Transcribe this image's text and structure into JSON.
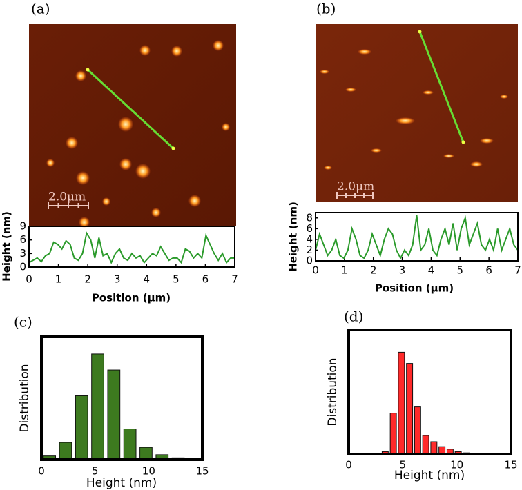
{
  "images": [
    {
      "scale_bar": "2.0μm"
    },
    {
      "scale_bar": "2.0μm"
    }
  ],
  "chart_data": [
    {
      "type": "line",
      "label": "(a)",
      "xlabel": "Position (μm)",
      "ylabel": "Height (nm)",
      "color": "#2a9a2a",
      "xlim": [
        0,
        7
      ],
      "ylim": [
        0,
        9
      ],
      "xticks": [
        0,
        1,
        2,
        3,
        4,
        5,
        6,
        7
      ],
      "yticks": [
        0,
        3,
        6,
        9
      ],
      "x": [
        0,
        0.14,
        0.28,
        0.42,
        0.56,
        0.7,
        0.84,
        0.98,
        1.12,
        1.26,
        1.4,
        1.54,
        1.68,
        1.82,
        1.96,
        2.1,
        2.24,
        2.38,
        2.52,
        2.66,
        2.8,
        2.94,
        3.08,
        3.22,
        3.36,
        3.5,
        3.64,
        3.78,
        3.92,
        4.06,
        4.2,
        4.34,
        4.48,
        4.62,
        4.76,
        4.9,
        5.04,
        5.18,
        5.32,
        5.46,
        5.6,
        5.74,
        5.88,
        6.02,
        6.16,
        6.3,
        6.44,
        6.58,
        6.72,
        6.86,
        7
      ],
      "values": [
        1,
        1.5,
        2,
        1.2,
        2.5,
        3,
        5.5,
        5,
        4,
        5.8,
        5,
        2,
        1.5,
        3,
        7.5,
        6,
        2,
        6.5,
        2.5,
        3,
        1,
        3,
        4,
        2,
        1.5,
        3,
        2,
        2.5,
        1,
        2,
        3,
        2.5,
        4.5,
        3,
        1.5,
        2,
        2,
        1,
        4,
        3.5,
        2,
        3,
        2,
        7,
        5,
        3,
        1.5,
        3,
        1,
        2,
        2
      ]
    },
    {
      "type": "line",
      "label": "(b)",
      "xlabel": "Position (μm)",
      "ylabel": "Height (nm)",
      "color": "#2a9a2a",
      "xlim": [
        0,
        7
      ],
      "ylim": [
        0,
        9
      ],
      "xticks": [
        0,
        1,
        2,
        3,
        4,
        5,
        6,
        7
      ],
      "yticks": [
        0,
        2,
        4,
        6,
        8
      ],
      "x": [
        0,
        0.14,
        0.28,
        0.42,
        0.56,
        0.7,
        0.84,
        0.98,
        1.12,
        1.26,
        1.4,
        1.54,
        1.68,
        1.82,
        1.96,
        2.1,
        2.24,
        2.38,
        2.52,
        2.66,
        2.8,
        2.94,
        3.08,
        3.22,
        3.36,
        3.5,
        3.64,
        3.78,
        3.92,
        4.06,
        4.2,
        4.34,
        4.48,
        4.62,
        4.76,
        4.9,
        5.04,
        5.18,
        5.32,
        5.46,
        5.6,
        5.74,
        5.88,
        6.02,
        6.16,
        6.3,
        6.44,
        6.58,
        6.72,
        6.86,
        7
      ],
      "values": [
        2,
        5,
        3,
        1,
        2,
        4,
        1,
        0.5,
        2,
        6,
        4,
        1,
        0.5,
        2,
        5,
        3,
        1,
        4,
        6,
        5,
        2,
        0.5,
        2,
        1,
        3,
        8.5,
        2,
        3,
        6,
        2,
        1,
        4,
        6,
        3,
        7,
        2,
        6,
        8,
        3,
        5,
        7,
        3,
        2,
        4,
        2,
        6,
        2,
        4,
        6,
        3,
        2
      ]
    },
    {
      "type": "histogram",
      "label": "(c)",
      "xlabel": "Height (nm)",
      "ylabel": "Distribution",
      "color": "#3d7a1f",
      "xlim": [
        0,
        15
      ],
      "ylim": [
        0,
        100
      ],
      "xticks": [
        0,
        5,
        10,
        15
      ],
      "bins": [
        0,
        1.5,
        3,
        4.5,
        6,
        7.5,
        9,
        10.5,
        12,
        13.5,
        15
      ],
      "values": [
        3,
        14,
        52,
        86,
        73,
        25,
        10,
        4,
        1.5,
        0.5
      ]
    },
    {
      "type": "histogram",
      "label": "(d)",
      "xlabel": "Height (nm)",
      "ylabel": "Distribution",
      "color": "#ff2a2a",
      "xlim": [
        0,
        15
      ],
      "ylim": [
        0,
        100
      ],
      "xticks": [
        0,
        5,
        10,
        15
      ],
      "bins": [
        2.25,
        3,
        3.75,
        4.5,
        5.25,
        6,
        6.75,
        7.5,
        8.25,
        9,
        9.75,
        10.5,
        11.25
      ],
      "values": [
        0.5,
        2,
        33,
        82,
        73,
        38,
        15,
        10,
        6,
        4,
        2,
        1
      ]
    }
  ]
}
